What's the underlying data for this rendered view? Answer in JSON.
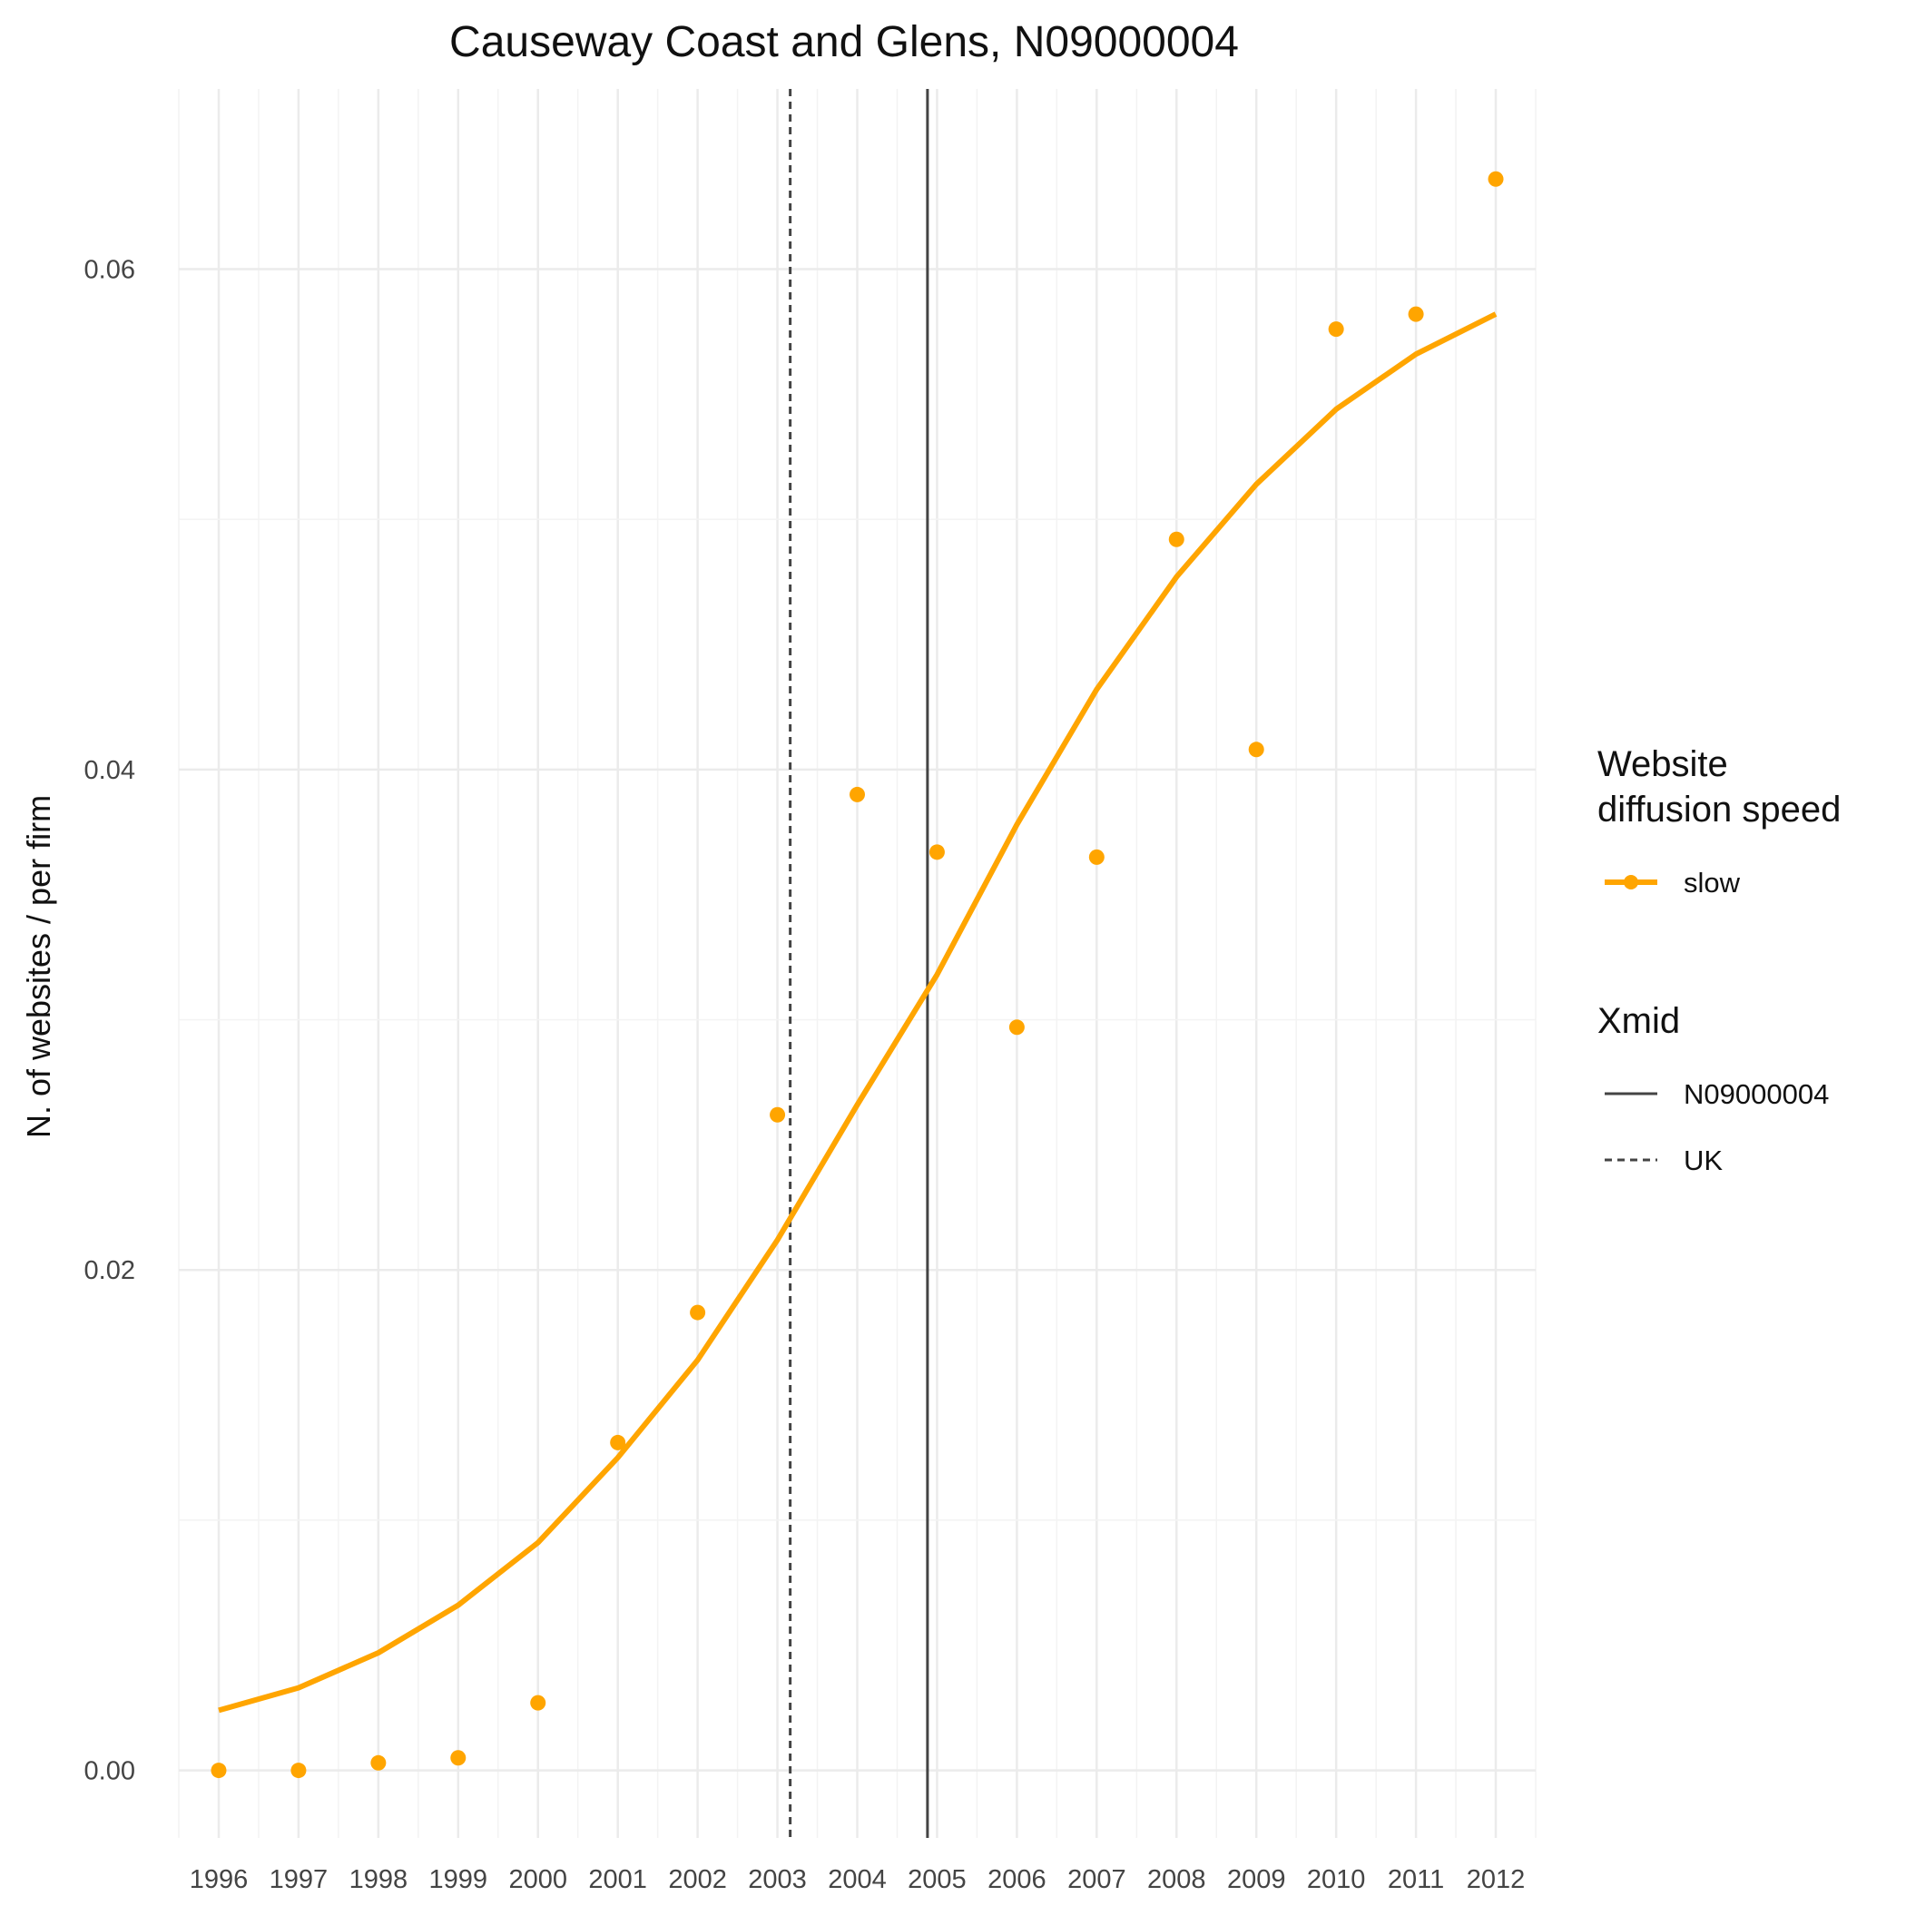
{
  "chart_data": {
    "type": "line",
    "title": "Causeway Coast and Glens, N09000004",
    "xlabel": "",
    "ylabel": "N. of websites / per firm",
    "x": [
      "1996",
      "1997",
      "1998",
      "1999",
      "2000",
      "2001",
      "2002",
      "2003",
      "2004",
      "2005",
      "2006",
      "2007",
      "2008",
      "2009",
      "2010",
      "2011",
      "2012"
    ],
    "xlim": [
      1995.5,
      2012.5
    ],
    "ylim": [
      -0.0027,
      0.0672
    ],
    "yticks": [
      0.0,
      0.02,
      0.04,
      0.06
    ],
    "yticklabels": [
      "0.00",
      "0.02",
      "0.04",
      "0.06"
    ],
    "grid": true,
    "series": [
      {
        "name": "slow",
        "color": "#FFA500",
        "points": [
          0.0,
          0.0,
          0.0003,
          0.0005,
          0.0027,
          0.0131,
          0.0183,
          0.0262,
          0.039,
          0.0367,
          0.0297,
          0.0365,
          0.0492,
          0.0408,
          0.0576,
          0.0582,
          0.0636
        ],
        "fit": [
          0.0024,
          0.0033,
          0.0047,
          0.0066,
          0.0091,
          0.0125,
          0.0164,
          0.0212,
          0.0266,
          0.0318,
          0.0378,
          0.0432,
          0.0477,
          0.0514,
          0.0544,
          0.0566,
          0.0582
        ]
      }
    ],
    "vlines": [
      {
        "name": "N09000004",
        "x": 2004.88,
        "style": "solid",
        "color": "#444444"
      },
      {
        "name": "UK",
        "x": 2003.16,
        "style": "dashed",
        "color": "#444444"
      }
    ],
    "legend": {
      "position": "right",
      "groups": [
        {
          "title_lines": [
            "Website",
            "diffusion speed"
          ],
          "items": [
            "slow"
          ]
        },
        {
          "title_lines": [
            "Xmid"
          ],
          "items": [
            "N09000004",
            "UK"
          ]
        }
      ]
    }
  }
}
